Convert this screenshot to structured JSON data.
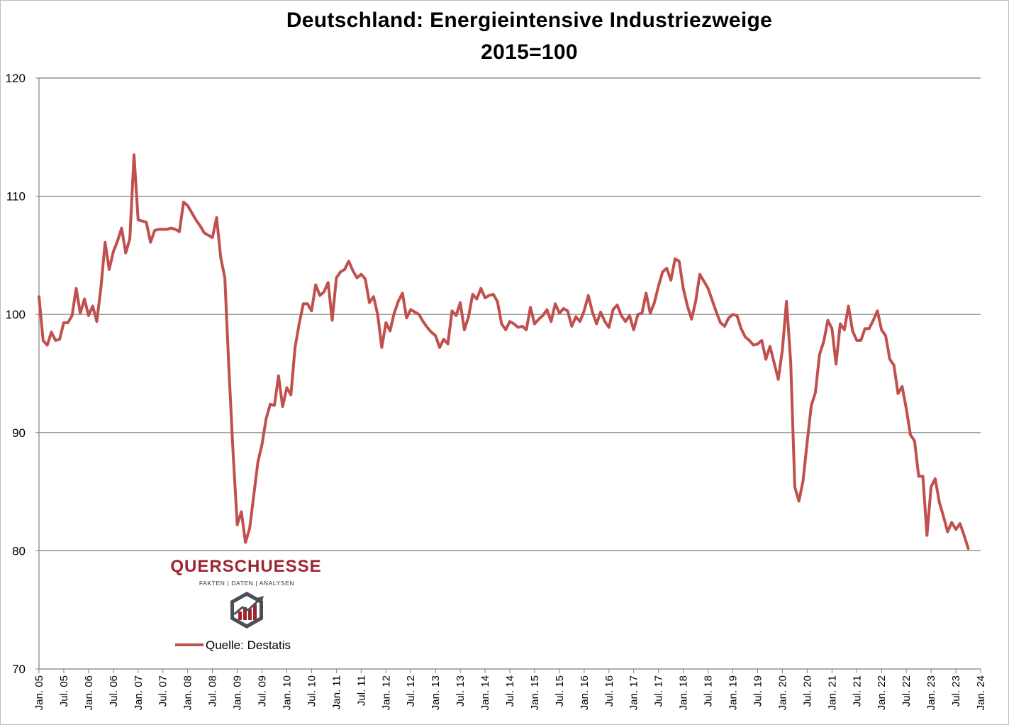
{
  "chart_data": {
    "type": "line",
    "title": "Deutschland: Energieintensive Industriezweige",
    "subtitle": "2015=100",
    "xlabel": "",
    "ylabel": "",
    "ylim": [
      70,
      120
    ],
    "yticks": [
      70,
      80,
      90,
      100,
      110,
      120
    ],
    "grid": true,
    "legend_position": "bottom-left inside plot",
    "x_tick_labels": [
      "Jan. 05",
      "Jul. 05",
      "Jan. 06",
      "Jul. 06",
      "Jan. 07",
      "Jul. 07",
      "Jan. 08",
      "Jul. 08",
      "Jan. 09",
      "Jul. 09",
      "Jan. 10",
      "Jul. 10",
      "Jan. 11",
      "Jul. 11",
      "Jan. 12",
      "Jul. 12",
      "Jan. 13",
      "Jul. 13",
      "Jan. 14",
      "Jul. 14",
      "Jan. 15",
      "Jul. 15",
      "Jan. 16",
      "Jul. 16",
      "Jan. 17",
      "Jul. 17",
      "Jan. 18",
      "Jul. 18",
      "Jan. 19",
      "Jul. 19",
      "Jan. 20",
      "Jul. 20",
      "Jan. 21",
      "Jul. 21",
      "Jan. 22",
      "Jul. 22",
      "Jan. 23",
      "Jul. 23",
      "Jan. 24"
    ],
    "x_start": "2005-01",
    "series": [
      {
        "name": "Quelle: Destatis",
        "color": "#c0504d",
        "values": [
          101.5,
          97.8,
          97.4,
          98.5,
          97.8,
          97.9,
          99.3,
          99.3,
          99.9,
          102.2,
          100.1,
          101.3,
          99.9,
          100.7,
          99.4,
          102.3,
          106.1,
          103.8,
          105.3,
          106.2,
          107.3,
          105.2,
          106.4,
          113.5,
          108.0,
          107.9,
          107.8,
          106.1,
          107.1,
          107.2,
          107.2,
          107.2,
          107.3,
          107.2,
          107.0,
          109.5,
          109.2,
          108.6,
          108.0,
          107.5,
          106.9,
          106.7,
          106.5,
          108.2,
          104.8,
          103.1,
          95.3,
          88.2,
          82.2,
          83.3,
          80.7,
          81.9,
          84.7,
          87.5,
          89.0,
          91.2,
          92.4,
          92.3,
          94.8,
          92.2,
          93.8,
          93.2,
          97.2,
          99.2,
          100.9,
          100.9,
          100.3,
          102.5,
          101.6,
          101.9,
          102.7,
          99.5,
          103.1,
          103.6,
          103.8,
          104.5,
          103.7,
          103.1,
          103.4,
          103.0,
          101.0,
          101.5,
          100.0,
          97.2,
          99.3,
          98.6,
          100.1,
          101.1,
          101.8,
          99.7,
          100.4,
          100.2,
          100.0,
          99.4,
          98.9,
          98.5,
          98.2,
          97.2,
          97.9,
          97.5,
          100.3,
          99.9,
          101.0,
          98.7,
          99.8,
          101.7,
          101.3,
          102.2,
          101.4,
          101.6,
          101.7,
          101.1,
          99.2,
          98.7,
          99.4,
          99.2,
          98.9,
          99.0,
          98.7,
          100.6,
          99.2,
          99.6,
          99.9,
          100.4,
          99.4,
          100.9,
          100.1,
          100.5,
          100.3,
          99.0,
          99.8,
          99.4,
          100.3,
          101.6,
          100.2,
          99.2,
          100.2,
          99.4,
          98.9,
          100.4,
          100.8,
          99.9,
          99.4,
          99.9,
          98.7,
          100.0,
          100.1,
          101.8,
          100.1,
          101.0,
          102.4,
          103.6,
          103.9,
          102.9,
          104.7,
          104.5,
          102.2,
          100.7,
          99.6,
          101.1,
          103.4,
          102.8,
          102.2,
          101.2,
          100.2,
          99.3,
          99.0,
          99.7,
          100.0,
          99.9,
          98.8,
          98.1,
          97.8,
          97.4,
          97.5,
          97.8,
          96.2,
          97.3,
          95.9,
          94.5,
          97.0,
          101.1,
          96.0,
          85.4,
          84.2,
          85.9,
          89.2,
          92.3,
          93.4,
          96.6,
          97.7,
          99.5,
          98.8,
          95.8,
          99.2,
          98.7,
          100.7,
          98.6,
          97.8,
          97.8,
          98.8,
          98.8,
          99.5,
          100.3,
          98.7,
          98.2,
          96.2,
          95.7,
          93.3,
          93.9,
          92.0,
          89.8,
          89.3,
          86.3,
          86.3,
          81.3,
          85.4,
          86.1,
          84.1,
          82.9,
          81.6,
          82.4,
          81.8,
          82.3,
          81.3,
          80.2
        ]
      }
    ]
  },
  "logo": {
    "word": "QUERSCHUESSE",
    "tagline": "FAKTEN | DATEN | ANALYSEN",
    "icon": "hexagon-chart-logo-icon"
  }
}
